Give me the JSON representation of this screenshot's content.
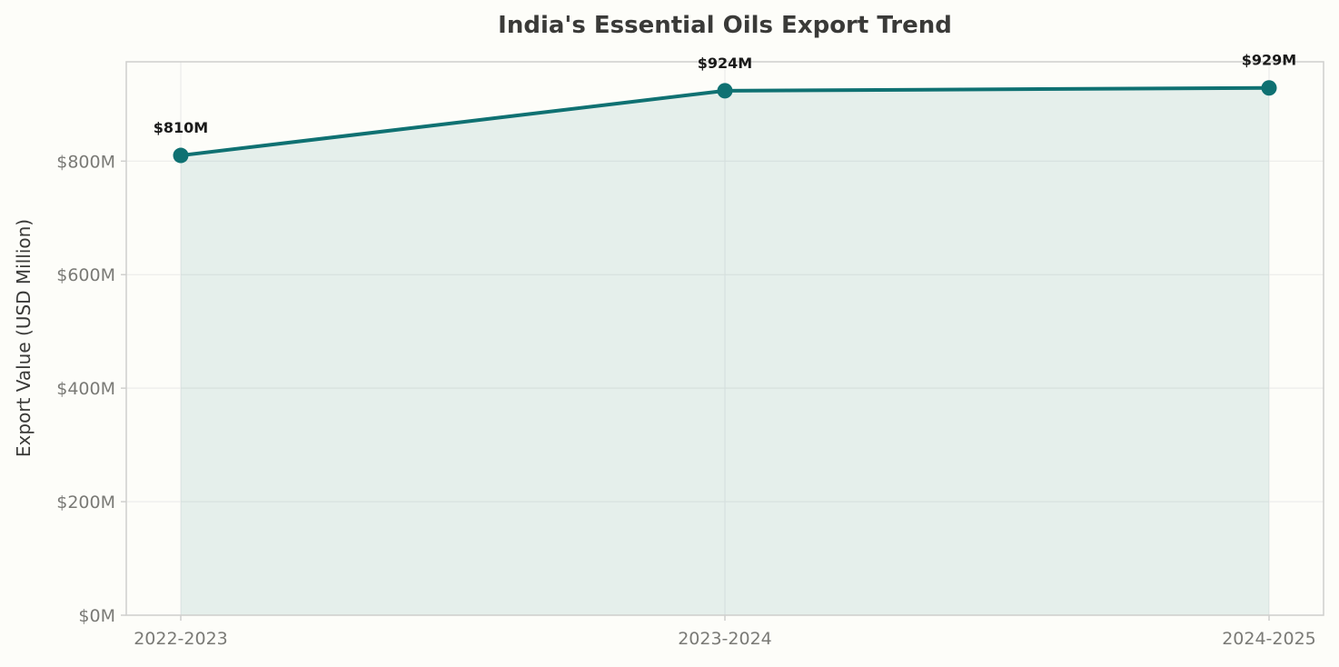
{
  "chart_data": {
    "type": "area",
    "title": "India's Essential Oils Export Trend",
    "xlabel": "",
    "ylabel": "Export Value (USD Million)",
    "categories": [
      "2022-2023",
      "2023-2024",
      "2024-2025"
    ],
    "values": [
      810,
      924,
      929
    ],
    "data_labels": [
      "$810M",
      "$924M",
      "$929M"
    ],
    "yticks": [
      0,
      200,
      400,
      600,
      800
    ],
    "ytick_labels": [
      "$0M",
      "$200M",
      "$400M",
      "$600M",
      "$800M"
    ],
    "ylim": [
      0,
      975
    ],
    "grid": true,
    "legend": null,
    "colors": {
      "line": "#0f7172",
      "fill": "#0f7172",
      "background": "#fdfdf9",
      "grid": "#ececea",
      "spine": "#cfcfcd",
      "tick_text": "#7a7a76",
      "title": "#3a3a38",
      "label": "#1a1a1a"
    }
  }
}
